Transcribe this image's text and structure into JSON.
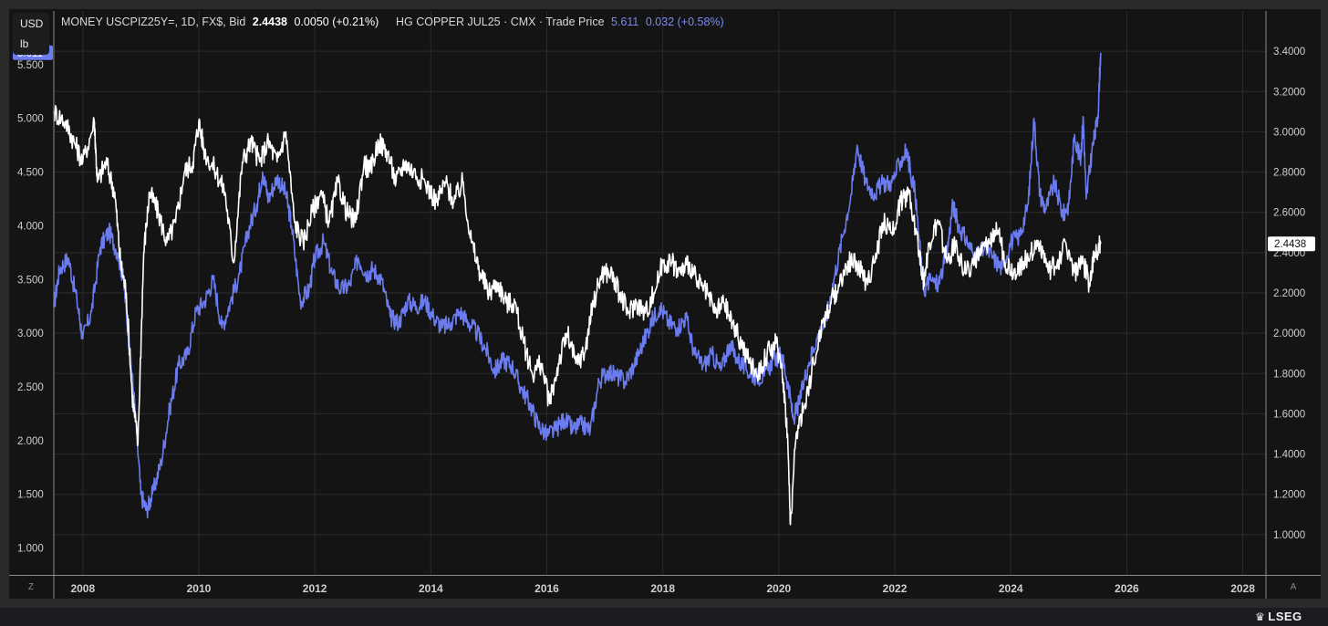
{
  "header": {
    "units": [
      "USD",
      "lb"
    ],
    "series1_name": "MONEY USCPIZ25Y=, 1D, FX$, Bid",
    "series1_price": "2.4438",
    "series1_change": "0.0050 (+0.21%)",
    "series2_name": "HG COPPER JUL25 · CMX · Trade Price",
    "series2_price": "5.611",
    "series2_change": "0.032 (+0.58%)"
  },
  "corner_left": "Z",
  "corner_right": "A",
  "logo_text": "LSEG",
  "colors": {
    "background": "#141414",
    "copper": "#6b7cf0",
    "cpi_swap": "#ffffff",
    "grid": "#2b2b2b",
    "text": "#cfcfcf"
  },
  "chart_data": {
    "type": "line",
    "x_range": [
      2007.5,
      2028.4
    ],
    "x_ticks": [
      "2008",
      "2010",
      "2012",
      "2014",
      "2016",
      "2018",
      "2020",
      "2022",
      "2024",
      "2026",
      "2028"
    ],
    "left_axis": {
      "ticks": [
        "1.000",
        "1.500",
        "2.000",
        "2.500",
        "3.000",
        "3.500",
        "4.000",
        "4.500",
        "5.000",
        "5.500"
      ],
      "range": [
        0.75,
        6.0
      ],
      "unit": "USD/lb"
    },
    "right_axis": {
      "ticks": [
        "1.0000",
        "1.2000",
        "1.4000",
        "1.6000",
        "1.8000",
        "2.0000",
        "2.2000",
        "2.4000",
        "2.6000",
        "2.8000",
        "3.0000",
        "3.2000",
        "3.4000"
      ],
      "range": [
        0.8,
        3.6
      ]
    },
    "last_values": {
      "left": "5.611",
      "right": "2.4438"
    },
    "series": [
      {
        "name": "HG COPPER JUL25 · CMX · Trade Price",
        "axis": "left",
        "color": "#6b7cf0",
        "points": [
          [
            2007.5,
            3.25
          ],
          [
            2007.6,
            3.6
          ],
          [
            2007.75,
            3.7
          ],
          [
            2007.9,
            3.3
          ],
          [
            2008.0,
            2.95
          ],
          [
            2008.15,
            3.2
          ],
          [
            2008.3,
            3.8
          ],
          [
            2008.45,
            3.95
          ],
          [
            2008.6,
            3.75
          ],
          [
            2008.7,
            3.5
          ],
          [
            2008.8,
            2.9
          ],
          [
            2008.9,
            2.3
          ],
          [
            2009.0,
            1.5
          ],
          [
            2009.1,
            1.35
          ],
          [
            2009.2,
            1.5
          ],
          [
            2009.35,
            1.8
          ],
          [
            2009.5,
            2.3
          ],
          [
            2009.65,
            2.7
          ],
          [
            2009.8,
            2.8
          ],
          [
            2009.95,
            3.2
          ],
          [
            2010.1,
            3.3
          ],
          [
            2010.25,
            3.5
          ],
          [
            2010.4,
            3.05
          ],
          [
            2010.55,
            3.3
          ],
          [
            2010.7,
            3.55
          ],
          [
            2010.85,
            3.95
          ],
          [
            2011.0,
            4.2
          ],
          [
            2011.1,
            4.5
          ],
          [
            2011.2,
            4.25
          ],
          [
            2011.35,
            4.45
          ],
          [
            2011.5,
            4.3
          ],
          [
            2011.6,
            4.0
          ],
          [
            2011.75,
            3.3
          ],
          [
            2011.9,
            3.4
          ],
          [
            2012.0,
            3.7
          ],
          [
            2012.15,
            3.85
          ],
          [
            2012.3,
            3.55
          ],
          [
            2012.45,
            3.4
          ],
          [
            2012.6,
            3.45
          ],
          [
            2012.75,
            3.7
          ],
          [
            2012.9,
            3.55
          ],
          [
            2013.0,
            3.6
          ],
          [
            2013.15,
            3.5
          ],
          [
            2013.3,
            3.15
          ],
          [
            2013.45,
            3.1
          ],
          [
            2013.6,
            3.3
          ],
          [
            2013.75,
            3.25
          ],
          [
            2013.9,
            3.3
          ],
          [
            2014.05,
            3.15
          ],
          [
            2014.2,
            3.05
          ],
          [
            2014.35,
            3.1
          ],
          [
            2014.5,
            3.2
          ],
          [
            2014.65,
            3.1
          ],
          [
            2014.8,
            3.0
          ],
          [
            2014.95,
            2.85
          ],
          [
            2015.1,
            2.65
          ],
          [
            2015.25,
            2.75
          ],
          [
            2015.4,
            2.7
          ],
          [
            2015.55,
            2.5
          ],
          [
            2015.7,
            2.35
          ],
          [
            2015.85,
            2.15
          ],
          [
            2016.0,
            2.05
          ],
          [
            2016.15,
            2.1
          ],
          [
            2016.3,
            2.2
          ],
          [
            2016.45,
            2.1
          ],
          [
            2016.6,
            2.15
          ],
          [
            2016.75,
            2.1
          ],
          [
            2016.9,
            2.55
          ],
          [
            2017.05,
            2.65
          ],
          [
            2017.2,
            2.6
          ],
          [
            2017.35,
            2.55
          ],
          [
            2017.5,
            2.7
          ],
          [
            2017.65,
            2.9
          ],
          [
            2017.8,
            3.1
          ],
          [
            2017.95,
            3.25
          ],
          [
            2018.1,
            3.1
          ],
          [
            2018.25,
            3.05
          ],
          [
            2018.4,
            3.15
          ],
          [
            2018.55,
            2.8
          ],
          [
            2018.7,
            2.7
          ],
          [
            2018.85,
            2.8
          ],
          [
            2019.0,
            2.65
          ],
          [
            2019.15,
            2.9
          ],
          [
            2019.3,
            2.75
          ],
          [
            2019.45,
            2.65
          ],
          [
            2019.6,
            2.6
          ],
          [
            2019.75,
            2.6
          ],
          [
            2019.9,
            2.75
          ],
          [
            2020.05,
            2.8
          ],
          [
            2020.15,
            2.55
          ],
          [
            2020.25,
            2.2
          ],
          [
            2020.35,
            2.35
          ],
          [
            2020.5,
            2.7
          ],
          [
            2020.65,
            2.95
          ],
          [
            2020.8,
            3.1
          ],
          [
            2020.95,
            3.5
          ],
          [
            2021.1,
            3.9
          ],
          [
            2021.25,
            4.3
          ],
          [
            2021.35,
            4.75
          ],
          [
            2021.5,
            4.4
          ],
          [
            2021.65,
            4.3
          ],
          [
            2021.8,
            4.4
          ],
          [
            2021.95,
            4.4
          ],
          [
            2022.1,
            4.6
          ],
          [
            2022.2,
            4.7
          ],
          [
            2022.35,
            4.3
          ],
          [
            2022.5,
            3.4
          ],
          [
            2022.6,
            3.5
          ],
          [
            2022.75,
            3.45
          ],
          [
            2022.9,
            3.75
          ],
          [
            2023.0,
            4.2
          ],
          [
            2023.1,
            4.0
          ],
          [
            2023.25,
            3.85
          ],
          [
            2023.4,
            3.7
          ],
          [
            2023.55,
            3.8
          ],
          [
            2023.7,
            3.7
          ],
          [
            2023.85,
            3.6
          ],
          [
            2024.0,
            3.85
          ],
          [
            2024.15,
            3.9
          ],
          [
            2024.3,
            4.2
          ],
          [
            2024.4,
            5.0
          ],
          [
            2024.5,
            4.3
          ],
          [
            2024.6,
            4.15
          ],
          [
            2024.75,
            4.4
          ],
          [
            2024.9,
            4.1
          ],
          [
            2025.0,
            4.2
          ],
          [
            2025.1,
            4.85
          ],
          [
            2025.2,
            4.6
          ],
          [
            2025.25,
            5.0
          ],
          [
            2025.3,
            4.25
          ],
          [
            2025.4,
            4.7
          ],
          [
            2025.5,
            5.0
          ],
          [
            2025.55,
            5.611
          ]
        ]
      },
      {
        "name": "MONEY USCPIZ25Y=, 1D, FX$, Bid",
        "axis": "right",
        "color": "#ffffff",
        "points": [
          [
            2007.5,
            3.1
          ],
          [
            2007.7,
            3.05
          ],
          [
            2007.85,
            2.95
          ],
          [
            2008.0,
            2.85
          ],
          [
            2008.2,
            3.05
          ],
          [
            2008.25,
            2.75
          ],
          [
            2008.4,
            2.85
          ],
          [
            2008.55,
            2.7
          ],
          [
            2008.65,
            2.35
          ],
          [
            2008.75,
            2.2
          ],
          [
            2008.85,
            1.7
          ],
          [
            2008.95,
            1.45
          ],
          [
            2009.05,
            2.4
          ],
          [
            2009.15,
            2.7
          ],
          [
            2009.3,
            2.6
          ],
          [
            2009.45,
            2.45
          ],
          [
            2009.6,
            2.55
          ],
          [
            2009.75,
            2.8
          ],
          [
            2009.9,
            2.85
          ],
          [
            2010.0,
            3.05
          ],
          [
            2010.1,
            2.9
          ],
          [
            2010.3,
            2.8
          ],
          [
            2010.45,
            2.7
          ],
          [
            2010.6,
            2.35
          ],
          [
            2010.75,
            2.85
          ],
          [
            2010.9,
            2.95
          ],
          [
            2011.05,
            2.85
          ],
          [
            2011.2,
            2.95
          ],
          [
            2011.35,
            2.85
          ],
          [
            2011.5,
            3.0
          ],
          [
            2011.65,
            2.55
          ],
          [
            2011.8,
            2.45
          ],
          [
            2011.95,
            2.6
          ],
          [
            2012.1,
            2.7
          ],
          [
            2012.25,
            2.55
          ],
          [
            2012.4,
            2.75
          ],
          [
            2012.55,
            2.6
          ],
          [
            2012.7,
            2.55
          ],
          [
            2012.85,
            2.85
          ],
          [
            2012.95,
            2.8
          ],
          [
            2013.1,
            2.95
          ],
          [
            2013.25,
            2.9
          ],
          [
            2013.4,
            2.75
          ],
          [
            2013.55,
            2.85
          ],
          [
            2013.7,
            2.8
          ],
          [
            2013.9,
            2.75
          ],
          [
            2014.1,
            2.65
          ],
          [
            2014.25,
            2.75
          ],
          [
            2014.4,
            2.65
          ],
          [
            2014.55,
            2.75
          ],
          [
            2014.7,
            2.45
          ],
          [
            2014.85,
            2.3
          ],
          [
            2015.0,
            2.2
          ],
          [
            2015.15,
            2.25
          ],
          [
            2015.3,
            2.15
          ],
          [
            2015.45,
            2.15
          ],
          [
            2015.6,
            1.95
          ],
          [
            2015.75,
            1.8
          ],
          [
            2015.9,
            1.85
          ],
          [
            2016.05,
            1.65
          ],
          [
            2016.2,
            1.85
          ],
          [
            2016.35,
            2.0
          ],
          [
            2016.5,
            1.85
          ],
          [
            2016.65,
            1.9
          ],
          [
            2016.8,
            2.15
          ],
          [
            2016.95,
            2.3
          ],
          [
            2017.1,
            2.3
          ],
          [
            2017.25,
            2.2
          ],
          [
            2017.4,
            2.1
          ],
          [
            2017.55,
            2.15
          ],
          [
            2017.7,
            2.1
          ],
          [
            2017.85,
            2.2
          ],
          [
            2018.0,
            2.35
          ],
          [
            2018.15,
            2.35
          ],
          [
            2018.3,
            2.3
          ],
          [
            2018.45,
            2.35
          ],
          [
            2018.6,
            2.25
          ],
          [
            2018.75,
            2.2
          ],
          [
            2018.9,
            2.1
          ],
          [
            2019.05,
            2.15
          ],
          [
            2019.2,
            2.05
          ],
          [
            2019.35,
            1.95
          ],
          [
            2019.5,
            1.85
          ],
          [
            2019.65,
            1.8
          ],
          [
            2019.8,
            1.9
          ],
          [
            2019.95,
            1.95
          ],
          [
            2020.05,
            1.85
          ],
          [
            2020.15,
            1.5
          ],
          [
            2020.2,
            1.05
          ],
          [
            2020.3,
            1.5
          ],
          [
            2020.45,
            1.65
          ],
          [
            2020.6,
            1.85
          ],
          [
            2020.75,
            2.05
          ],
          [
            2020.9,
            2.15
          ],
          [
            2021.05,
            2.25
          ],
          [
            2021.2,
            2.35
          ],
          [
            2021.35,
            2.35
          ],
          [
            2021.5,
            2.25
          ],
          [
            2021.65,
            2.35
          ],
          [
            2021.8,
            2.55
          ],
          [
            2021.95,
            2.5
          ],
          [
            2022.1,
            2.65
          ],
          [
            2022.25,
            2.7
          ],
          [
            2022.4,
            2.45
          ],
          [
            2022.5,
            2.25
          ],
          [
            2022.6,
            2.45
          ],
          [
            2022.75,
            2.55
          ],
          [
            2022.9,
            2.35
          ],
          [
            2023.05,
            2.45
          ],
          [
            2023.2,
            2.3
          ],
          [
            2023.35,
            2.35
          ],
          [
            2023.5,
            2.4
          ],
          [
            2023.65,
            2.45
          ],
          [
            2023.75,
            2.55
          ],
          [
            2023.9,
            2.35
          ],
          [
            2024.05,
            2.3
          ],
          [
            2024.2,
            2.35
          ],
          [
            2024.35,
            2.4
          ],
          [
            2024.5,
            2.45
          ],
          [
            2024.65,
            2.3
          ],
          [
            2024.8,
            2.35
          ],
          [
            2024.95,
            2.45
          ],
          [
            2025.1,
            2.3
          ],
          [
            2025.25,
            2.35
          ],
          [
            2025.35,
            2.25
          ],
          [
            2025.45,
            2.4
          ],
          [
            2025.55,
            2.4438
          ]
        ]
      }
    ]
  }
}
